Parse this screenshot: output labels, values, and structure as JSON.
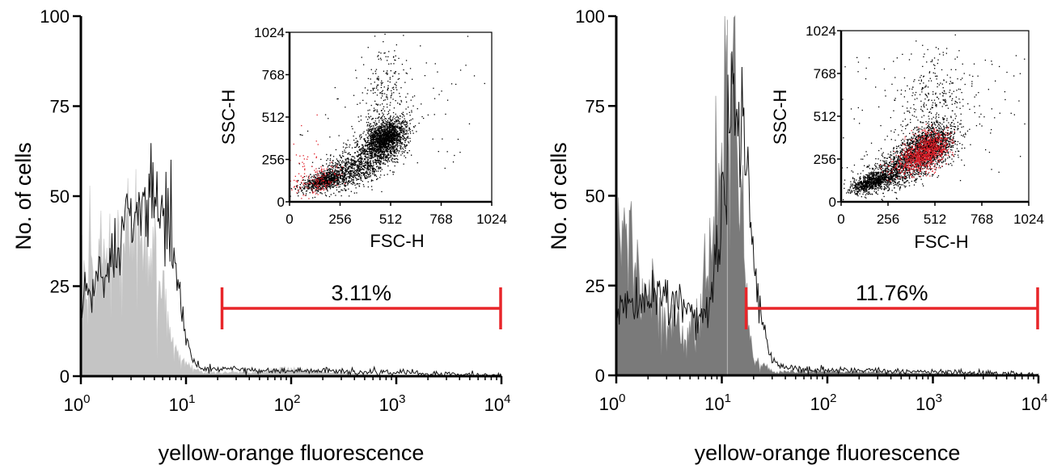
{
  "colors": {
    "stained_trace": "#111111",
    "control_fill_left": "#c4c4c4",
    "control_line_left": "#dcdcdc",
    "control_fill_right": "#7a7a7a",
    "control_line_right": "#b0b0b0",
    "gate": "#e8262a",
    "inset_red_events": "#e0202a",
    "inset_black_events": "#000000"
  },
  "chart_data": [
    {
      "type": "area",
      "panel": "left",
      "xlabel": "yellow-orange fluorescence",
      "ylabel": "No. of cells",
      "x_scale": "log",
      "xlim": [
        1,
        10000
      ],
      "ylim": [
        0,
        100
      ],
      "x_ticks": [
        {
          "base": "10",
          "exp": "0"
        },
        {
          "base": "10",
          "exp": "1"
        },
        {
          "base": "10",
          "exp": "2"
        },
        {
          "base": "10",
          "exp": "3"
        },
        {
          "base": "10",
          "exp": "4"
        }
      ],
      "y_ticks": [
        "0",
        "25",
        "50",
        "75",
        "100"
      ],
      "series": [
        {
          "role": "control (filled)",
          "x": [
            1.0,
            1.3,
            1.6,
            2.0,
            2.5,
            3.0,
            3.5,
            4.0,
            5.0,
            6.0,
            7.0,
            8.0,
            9.0,
            10.0,
            12.0,
            15.0,
            20.0,
            50.0,
            100.0,
            200.0,
            1000.0,
            10000.0
          ],
          "y": [
            27,
            27,
            30,
            33,
            37,
            40,
            41,
            38,
            30,
            20,
            13,
            8,
            5,
            3,
            2,
            1,
            1,
            1,
            2,
            1,
            0,
            0
          ]
        },
        {
          "role": "stained (black trace)",
          "x": [
            1.0,
            1.3,
            1.6,
            2.0,
            2.5,
            3.0,
            3.5,
            4.0,
            5.0,
            6.0,
            7.0,
            8.0,
            9.0,
            10.0,
            12.0,
            15.0,
            20.0,
            50.0,
            100.0,
            200.0,
            500.0,
            1000.0,
            10000.0
          ],
          "y": [
            23,
            25,
            30,
            34,
            39,
            44,
            47,
            49,
            50,
            48,
            43,
            32,
            20,
            10,
            4,
            2,
            2,
            1.5,
            1.5,
            1.5,
            1,
            1,
            0
          ]
        }
      ],
      "gate": {
        "x_range": [
          22,
          10000
        ],
        "label": "3.11%"
      },
      "inset": {
        "type": "scatter",
        "xlabel": "FSC-H",
        "ylabel": "SSC-H",
        "xlim": [
          0,
          1024
        ],
        "ylim": [
          0,
          1024
        ],
        "x_ticks": [
          "0",
          "256",
          "512",
          "768",
          "1024"
        ],
        "y_ticks": [
          "0",
          "256",
          "512",
          "768",
          "1024"
        ],
        "clusters": [
          {
            "color": "black",
            "center": [
              480,
              380
            ],
            "spread": [
              55,
              55
            ],
            "count": 1800
          },
          {
            "color": "black",
            "center": [
              330,
              200
            ],
            "spread": [
              90,
              55
            ],
            "count": 900
          },
          {
            "color": "black",
            "center": [
              170,
              130
            ],
            "spread": [
              55,
              25
            ],
            "count": 700
          },
          {
            "color": "black",
            "center": [
              480,
              620
            ],
            "spread": [
              60,
              170
            ],
            "count": 260
          },
          {
            "color": "black",
            "center": [
              512,
              512
            ],
            "spread": [
              300,
              300
            ],
            "count": 120
          },
          {
            "color": "red",
            "center": [
              140,
              130
            ],
            "spread": [
              55,
              40
            ],
            "count": 140
          },
          {
            "color": "red",
            "center": [
              80,
              260
            ],
            "spread": [
              40,
              100
            ],
            "count": 30
          }
        ]
      }
    },
    {
      "type": "area",
      "panel": "right",
      "xlabel": "yellow-orange fluorescence",
      "ylabel": "No. of cells",
      "x_scale": "log",
      "xlim": [
        1,
        10000
      ],
      "ylim": [
        0,
        100
      ],
      "x_ticks": [
        {
          "base": "10",
          "exp": "0"
        },
        {
          "base": "10",
          "exp": "1"
        },
        {
          "base": "10",
          "exp": "2"
        },
        {
          "base": "10",
          "exp": "3"
        },
        {
          "base": "10",
          "exp": "4"
        }
      ],
      "y_ticks": [
        "0",
        "25",
        "50",
        "75",
        "100"
      ],
      "series": [
        {
          "role": "control (filled)",
          "x": [
            1.0,
            1.2,
            1.5,
            2.0,
            2.5,
            3.0,
            4.0,
            5.0,
            6.0,
            7.0,
            8.0,
            9.0,
            10.0,
            11.0,
            12.0,
            13.0,
            14.0,
            15.0,
            16.0,
            17.0,
            20.0,
            30.0,
            50.0,
            100.0,
            10000.0
          ],
          "y": [
            40,
            36,
            28,
            22,
            18,
            15,
            12,
            12,
            16,
            28,
            44,
            56,
            63,
            67,
            68,
            67,
            63,
            55,
            40,
            20,
            5,
            1,
            1,
            1,
            0
          ]
        },
        {
          "role": "stained (black trace)",
          "x": [
            1.0,
            1.2,
            1.5,
            2.0,
            2.5,
            3.0,
            4.0,
            5.0,
            6.0,
            7.0,
            8.0,
            9.0,
            10.0,
            11.0,
            12.0,
            13.0,
            14.0,
            15.0,
            16.0,
            18.0,
            20.0,
            25.0,
            30.0,
            40.0,
            60.0,
            100.0,
            1000.0,
            10000.0
          ],
          "y": [
            17,
            18,
            20,
            22,
            22,
            21,
            20,
            19,
            18,
            18,
            22,
            32,
            45,
            60,
            68,
            71,
            72,
            70,
            65,
            50,
            32,
            12,
            4,
            2,
            1.5,
            1.5,
            1,
            0
          ]
        }
      ],
      "gate": {
        "x_range": [
          17,
          10000
        ],
        "label": "11.76%"
      },
      "inset": {
        "type": "scatter",
        "xlabel": "FSC-H",
        "ylabel": "SSC-H",
        "xlim": [
          0,
          1024
        ],
        "ylim": [
          0,
          1024
        ],
        "x_ticks": [
          "0",
          "256",
          "512",
          "768",
          "1024"
        ],
        "y_ticks": [
          "0",
          "256",
          "512",
          "768",
          "1024"
        ],
        "clusters": [
          {
            "color": "black",
            "center": [
              470,
              330
            ],
            "spread": [
              75,
              60
            ],
            "count": 1500
          },
          {
            "color": "black",
            "center": [
              300,
              190
            ],
            "spread": [
              90,
              55
            ],
            "count": 900
          },
          {
            "color": "black",
            "center": [
              160,
              120
            ],
            "spread": [
              55,
              25
            ],
            "count": 700
          },
          {
            "color": "black",
            "center": [
              500,
              550
            ],
            "spread": [
              90,
              150
            ],
            "count": 300
          },
          {
            "color": "black",
            "center": [
              512,
              512
            ],
            "spread": [
              300,
              300
            ],
            "count": 220
          },
          {
            "color": "red",
            "center": [
              470,
              310
            ],
            "spread": [
              55,
              55
            ],
            "count": 700
          },
          {
            "color": "red",
            "center": [
              380,
              240
            ],
            "spread": [
              60,
              40
            ],
            "count": 250
          }
        ]
      }
    }
  ]
}
